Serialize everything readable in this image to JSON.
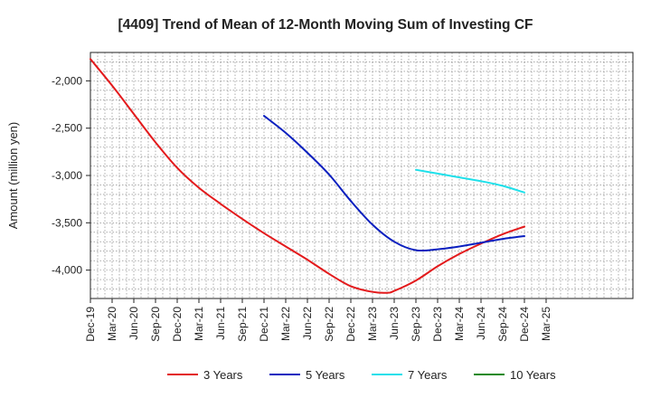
{
  "chart_data": {
    "type": "line",
    "title": "[4409]  Trend of Mean of 12-Month Moving Sum of Investing CF",
    "xlabel": "",
    "ylabel": "Amount (million yen)",
    "ylim": [
      -4300,
      -1700
    ],
    "yticks": [
      -2000,
      -2500,
      -3000,
      -3500,
      -4000
    ],
    "ytick_labels": [
      "-2,000",
      "-2,500",
      "-3,000",
      "-3,500",
      "-4,000"
    ],
    "x_range_months": [
      0,
      75
    ],
    "xtick_labels": [
      "Dec-19",
      "Mar-20",
      "Jun-20",
      "Sep-20",
      "Dec-20",
      "Mar-21",
      "Jun-21",
      "Sep-21",
      "Dec-21",
      "Mar-22",
      "Jun-22",
      "Sep-22",
      "Dec-22",
      "Mar-23",
      "Jun-23",
      "Sep-23",
      "Dec-23",
      "Mar-24",
      "Jun-24",
      "Sep-24",
      "Dec-24",
      "Mar-25"
    ],
    "grid": true,
    "legend_position": "bottom",
    "series": [
      {
        "name": "3 Years",
        "color": "#e31a1c",
        "points": [
          [
            0,
            -1770
          ],
          [
            3,
            -2050
          ],
          [
            6,
            -2350
          ],
          [
            9,
            -2650
          ],
          [
            12,
            -2920
          ],
          [
            15,
            -3130
          ],
          [
            18,
            -3300
          ],
          [
            21,
            -3460
          ],
          [
            24,
            -3610
          ],
          [
            27,
            -3750
          ],
          [
            30,
            -3890
          ],
          [
            33,
            -4040
          ],
          [
            36,
            -4170
          ],
          [
            39,
            -4230
          ],
          [
            41,
            -4240
          ],
          [
            42,
            -4220
          ],
          [
            45,
            -4110
          ],
          [
            48,
            -3960
          ],
          [
            51,
            -3830
          ],
          [
            54,
            -3720
          ],
          [
            57,
            -3620
          ],
          [
            60,
            -3540
          ]
        ]
      },
      {
        "name": "5 Years",
        "color": "#0a1fbf",
        "points": [
          [
            24,
            -2370
          ],
          [
            27,
            -2550
          ],
          [
            30,
            -2760
          ],
          [
            33,
            -2990
          ],
          [
            36,
            -3270
          ],
          [
            39,
            -3520
          ],
          [
            42,
            -3700
          ],
          [
            45,
            -3790
          ],
          [
            48,
            -3780
          ],
          [
            51,
            -3750
          ],
          [
            54,
            -3710
          ],
          [
            57,
            -3670
          ],
          [
            60,
            -3640
          ]
        ]
      },
      {
        "name": "7 Years",
        "color": "#1ee0ea",
        "points": [
          [
            45,
            -2940
          ],
          [
            48,
            -2980
          ],
          [
            51,
            -3020
          ],
          [
            54,
            -3060
          ],
          [
            57,
            -3110
          ],
          [
            60,
            -3180
          ]
        ]
      },
      {
        "name": "10 Years",
        "color": "#1a8a1a",
        "points": []
      }
    ]
  }
}
